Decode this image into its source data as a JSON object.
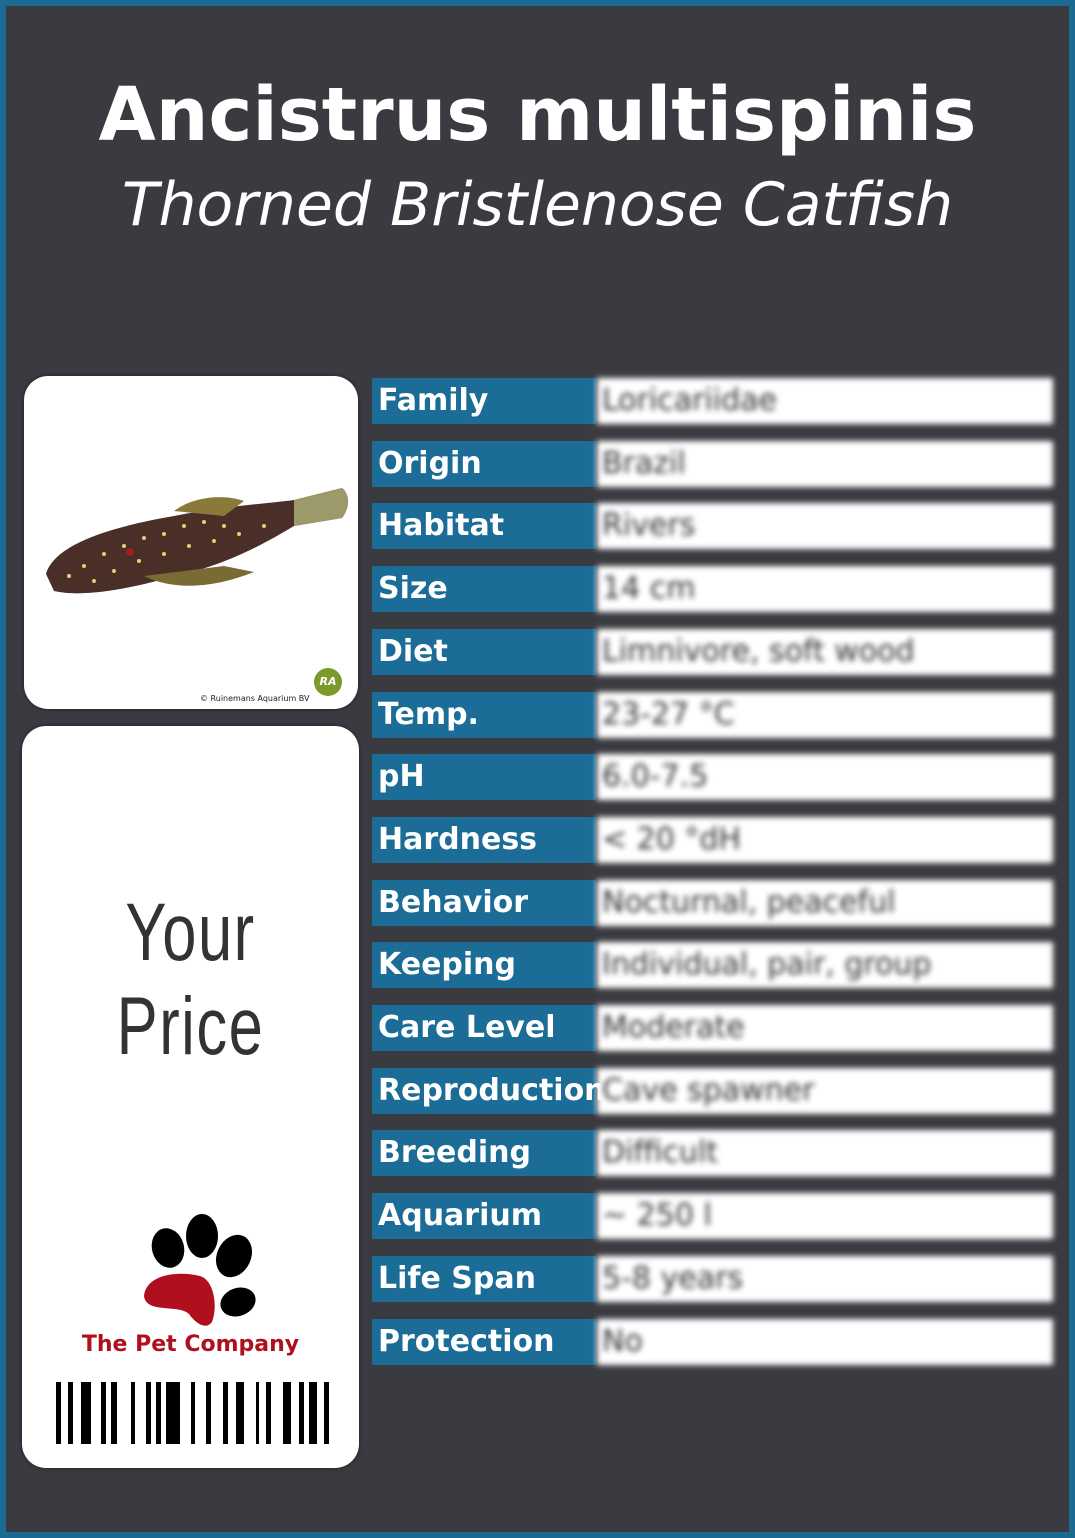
{
  "header": {
    "scientific_name": "Ancistrus multispinis",
    "common_name": "Thorned Bristlenose Catfish"
  },
  "photo": {
    "credit": "© Ruinemans Aquarium BV",
    "logo_text": "RA"
  },
  "price": {
    "label": "Your  Price"
  },
  "brand": {
    "name": "The Pet Company",
    "accent": "#b0101e"
  },
  "colors": {
    "label_bg": "#1b6c96",
    "background": "#3a3b40",
    "border": "#1c6a92"
  },
  "facts": [
    {
      "label": "Family",
      "value": "Loricariidae"
    },
    {
      "label": "Origin",
      "value": "Brazil"
    },
    {
      "label": "Habitat",
      "value": "Rivers"
    },
    {
      "label": "Size",
      "value": "14 cm"
    },
    {
      "label": "Diet",
      "value": "Limnivore, soft wood"
    },
    {
      "label": "Temp.",
      "value": "23-27 °C"
    },
    {
      "label": "pH",
      "value": "6.0-7.5"
    },
    {
      "label": "Hardness",
      "value": "< 20 °dH"
    },
    {
      "label": "Behavior",
      "value": "Nocturnal, peaceful"
    },
    {
      "label": "Keeping",
      "value": "Individual, pair, group"
    },
    {
      "label": "Care Level",
      "value": "Moderate"
    },
    {
      "label": "Reproduction",
      "value": "Cave spawner"
    },
    {
      "label": "Breeding",
      "value": "Difficult"
    },
    {
      "label": "Aquarium",
      "value": "~ 250 l"
    },
    {
      "label": "Life Span",
      "value": "5-8 years"
    },
    {
      "label": "Protection",
      "value": "No"
    }
  ]
}
